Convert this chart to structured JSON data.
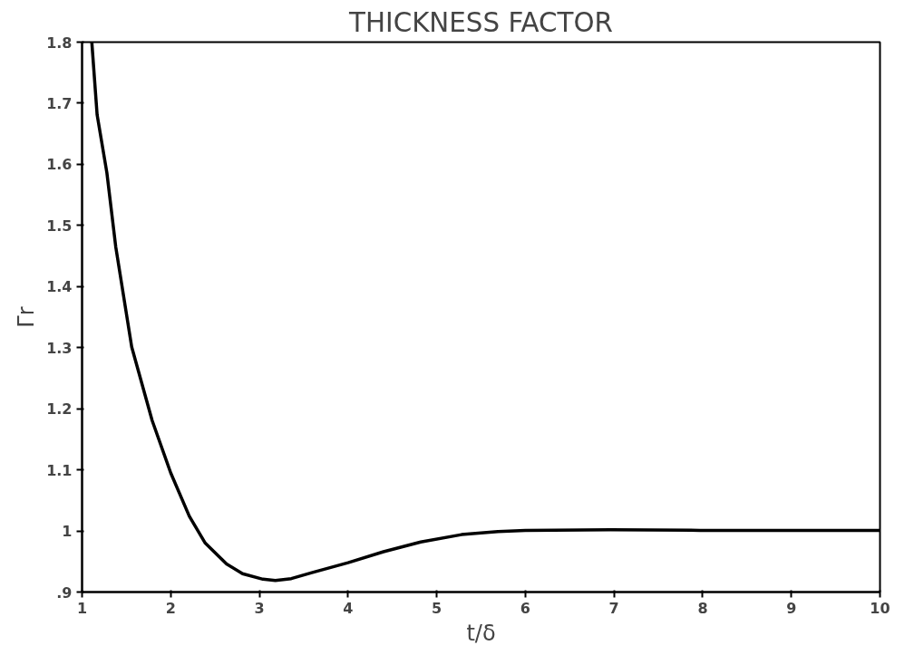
{
  "chart_data": {
    "type": "line",
    "title": "THICKNESS FACTOR",
    "xlabel": "t/δ",
    "ylabel": "Γr",
    "x": [
      1.11,
      1.17,
      1.28,
      1.38,
      1.56,
      1.79,
      2.0,
      2.21,
      2.39,
      2.63,
      2.81,
      3.04,
      3.18,
      3.36,
      3.6,
      4.0,
      4.4,
      4.82,
      5.28,
      5.69,
      6.0,
      6.96,
      7.97,
      10.0
    ],
    "series": [
      {
        "color": "#000000",
        "values": [
          1.8,
          1.681,
          1.586,
          1.465,
          1.301,
          1.181,
          1.095,
          1.024,
          0.98,
          0.946,
          0.93,
          0.921,
          0.919,
          0.922,
          0.932,
          0.948,
          0.966,
          0.982,
          0.994,
          0.999,
          1.001,
          1.002,
          1.001,
          1.001
        ]
      }
    ],
    "xlim": [
      1,
      10
    ],
    "ylim": [
      0.9,
      1.8
    ],
    "xticks": [
      1,
      2,
      3,
      4,
      5,
      6,
      7,
      8,
      9,
      10
    ],
    "yticks": [
      {
        "value": 0.9,
        "label": ".9"
      },
      1,
      1.1,
      1.2,
      1.3,
      1.4,
      1.5,
      1.6,
      1.7,
      1.8
    ],
    "grid": false
  }
}
